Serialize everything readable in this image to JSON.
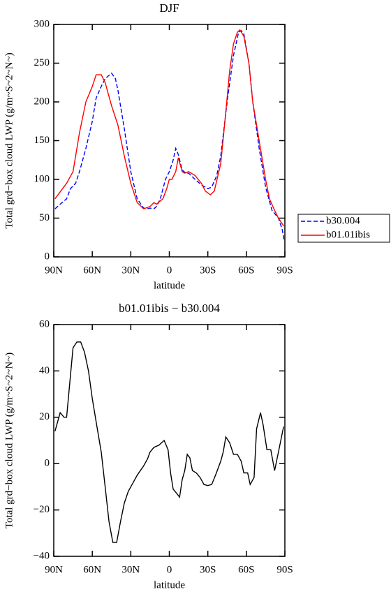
{
  "chart_data": [
    {
      "type": "line",
      "title": "DJF",
      "xlabel": "latitude",
      "ylabel": "Total grd−box cloud LWP (g/m~S~2~N~)",
      "xlim": [
        90,
        -90
      ],
      "xticks": [
        {
          "value": 90,
          "label": "90N"
        },
        {
          "value": 60,
          "label": "60N"
        },
        {
          "value": 30,
          "label": "30N"
        },
        0,
        {
          "value": -30,
          "label": "30S"
        },
        {
          "value": -60,
          "label": "60S"
        },
        {
          "value": -90,
          "label": "90S"
        }
      ],
      "ylim": [
        0,
        300
      ],
      "yticks": [
        0,
        50,
        100,
        150,
        200,
        250,
        300
      ],
      "legend": "right",
      "series": [
        {
          "name": "b30.004",
          "color": "#0000ff",
          "line_style": "dashed",
          "x": [
            89,
            85,
            80,
            77,
            73,
            70,
            65,
            60,
            57,
            53,
            50,
            45,
            42,
            40,
            35,
            30,
            25,
            20,
            17,
            15,
            12,
            10,
            7,
            3,
            0,
            -3,
            -5,
            -7,
            -10,
            -13,
            -15,
            -20,
            -25,
            -30,
            -33,
            -37,
            -40,
            -45,
            -50,
            -54,
            -56,
            -58,
            -62,
            -65,
            -70,
            -75,
            -80,
            -85,
            -88,
            -89.5
          ],
          "values": [
            62,
            68,
            75,
            88,
            95,
            110,
            140,
            175,
            205,
            220,
            230,
            237,
            230,
            215,
            165,
            110,
            75,
            63,
            62,
            63,
            62,
            65,
            75,
            100,
            110,
            125,
            140,
            132,
            112,
            108,
            108,
            100,
            93,
            88,
            90,
            105,
            130,
            200,
            260,
            290,
            292,
            288,
            250,
            200,
            140,
            90,
            60,
            50,
            35,
            20
          ]
        },
        {
          "name": "b01.01ibis",
          "color": "#ff0000",
          "line_style": "solid",
          "x": [
            89,
            80,
            75,
            70,
            65,
            60,
            57,
            53,
            50,
            45,
            40,
            35,
            30,
            25,
            20,
            15,
            12,
            10,
            5,
            2,
            0,
            -2,
            -5,
            -7,
            -10,
            -12,
            -15,
            -20,
            -25,
            -28,
            -32,
            -35,
            -40,
            -43,
            -47,
            -50,
            -53,
            -55,
            -58,
            -62,
            -65,
            -70,
            -75,
            -78,
            -82,
            -85,
            -89
          ],
          "values": [
            75,
            95,
            110,
            160,
            200,
            220,
            235,
            235,
            225,
            195,
            170,
            130,
            95,
            70,
            62,
            65,
            70,
            68,
            75,
            88,
            100,
            100,
            110,
            128,
            110,
            108,
            110,
            105,
            95,
            85,
            80,
            85,
            120,
            170,
            240,
            275,
            290,
            293,
            285,
            250,
            200,
            150,
            100,
            75,
            60,
            50,
            40
          ]
        }
      ]
    },
    {
      "type": "line",
      "title": "b01.01ibis − b30.004",
      "xlabel": "latitude",
      "ylabel": "Total grd−box cloud LWP (g/m~S~2~N~)",
      "xlim": [
        90,
        -90
      ],
      "xticks": [
        {
          "value": 90,
          "label": "90N"
        },
        {
          "value": 60,
          "label": "60N"
        },
        {
          "value": 30,
          "label": "30N"
        },
        0,
        {
          "value": -30,
          "label": "30S"
        },
        {
          "value": -60,
          "label": "60S"
        },
        {
          "value": -90,
          "label": "90S"
        }
      ],
      "ylim": [
        -40,
        60
      ],
      "yticks": [
        {
          "value": -40,
          "label": "−40"
        },
        {
          "value": -20,
          "label": "−20"
        },
        0,
        20,
        40,
        60
      ],
      "series": [
        {
          "color": "#000000",
          "line_style": "solid",
          "x": [
            89,
            87,
            85,
            82,
            80,
            77,
            75,
            72,
            69,
            66,
            63,
            60,
            57,
            53,
            50,
            47,
            44,
            41,
            38,
            35,
            32,
            28,
            25,
            20,
            17,
            15,
            12,
            8,
            4,
            1,
            -1,
            -3,
            -6,
            -8,
            -10,
            -12,
            -14,
            -16,
            -18,
            -21,
            -24,
            -27,
            -30,
            -33,
            -36,
            -40,
            -42,
            -44,
            -47,
            -50,
            -53,
            -56,
            -58,
            -61,
            -63,
            -66,
            -68,
            -71,
            -73,
            -76,
            -79,
            -82,
            -85,
            -89
          ],
          "values": [
            14,
            18,
            22,
            20,
            20,
            38,
            50,
            52.5,
            52.5,
            48,
            40,
            28,
            18,
            5,
            -10,
            -25,
            -34,
            -34,
            -25,
            -17,
            -12,
            -8,
            -5,
            -1,
            2,
            5,
            7,
            8,
            10,
            6,
            -4,
            -11,
            -13,
            -14.5,
            -7,
            -3,
            4,
            2.5,
            -3,
            -4,
            -6,
            -9,
            -9.5,
            -9,
            -5,
            1,
            5,
            11.5,
            9,
            4,
            4,
            1,
            -4,
            -4,
            -9,
            -6,
            15,
            22,
            17,
            6,
            6,
            -3,
            5,
            16
          ]
        }
      ]
    }
  ]
}
